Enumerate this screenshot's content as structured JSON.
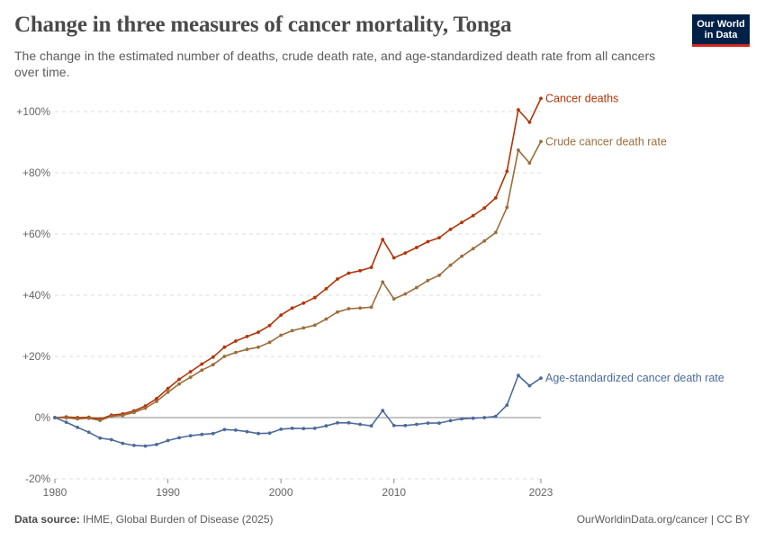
{
  "header": {
    "title": "Change in three measures of cancer mortality, Tonga",
    "subtitle": "The change in the estimated number of deaths, crude death rate, and age-standardized death rate from all cancers over time."
  },
  "logo": {
    "line1": "Our World",
    "line2": "in Data",
    "bg_color": "#002147",
    "accent_color": "#ce261e"
  },
  "footer": {
    "source_label": "Data source:",
    "source_text": "IHME, Global Burden of Disease (2025)",
    "credit": "OurWorldinData.org/cancer | CC BY"
  },
  "chart_data": {
    "type": "line",
    "x_ticks": [
      "1980",
      "1990",
      "2000",
      "2010",
      "2023"
    ],
    "y_ticks": [
      "-20%",
      "0%",
      "+20%",
      "+40%",
      "+60%",
      "+80%",
      "+100%"
    ],
    "xlim": [
      1980,
      2023
    ],
    "ylim": [
      -20,
      105
    ],
    "grid": "horizontal dashed",
    "legend": "labels at line ends (right)",
    "x": [
      1980,
      1981,
      1982,
      1983,
      1984,
      1985,
      1986,
      1987,
      1988,
      1989,
      1990,
      1991,
      1992,
      1993,
      1994,
      1995,
      1996,
      1997,
      1998,
      1999,
      2000,
      2001,
      2002,
      2003,
      2004,
      2005,
      2006,
      2007,
      2008,
      2009,
      2010,
      2011,
      2012,
      2013,
      2014,
      2015,
      2016,
      2017,
      2018,
      2019,
      2020,
      2021,
      2022,
      2023
    ],
    "series": [
      {
        "name": "Cancer deaths",
        "color": "#b13507",
        "values": [
          0,
          0.2,
          0,
          0.1,
          -0.5,
          0.8,
          1.2,
          2.2,
          3.8,
          6.2,
          9.5,
          12.5,
          15,
          17.5,
          19.8,
          23,
          25,
          26.5,
          27.9,
          30.1,
          33.5,
          35.8,
          37.4,
          39.2,
          42.1,
          45.3,
          47.2,
          48,
          49.1,
          58.2,
          52.2,
          53.8,
          55.6,
          57.5,
          58.8,
          61.5,
          63.8,
          66,
          68.5,
          71.8,
          80.5,
          100.6,
          96.5,
          104.3
        ]
      },
      {
        "name": "Crude cancer death rate",
        "color": "#9a6e3b",
        "values": [
          0,
          -0.1,
          -0.4,
          -0.2,
          -0.9,
          0.4,
          0.7,
          1.7,
          3.1,
          5.3,
          8.3,
          11,
          13.2,
          15.5,
          17.3,
          20,
          21.3,
          22.3,
          23,
          24.6,
          26.9,
          28.4,
          29.3,
          30.2,
          32.2,
          34.5,
          35.6,
          35.8,
          36.1,
          44.3,
          38.8,
          40.4,
          42.5,
          44.8,
          46.5,
          49.8,
          52.7,
          55.2,
          57.7,
          60.5,
          68.7,
          87.4,
          83.2,
          90.2
        ]
      },
      {
        "name": "Age-standardized cancer death rate",
        "color": "#4c6a9c",
        "values": [
          0,
          -1.5,
          -3.2,
          -4.8,
          -6.7,
          -7.2,
          -8.4,
          -9.1,
          -9.3,
          -8.8,
          -7.5,
          -6.6,
          -5.9,
          -5.5,
          -5.2,
          -3.9,
          -4.1,
          -4.6,
          -5.2,
          -5.1,
          -3.8,
          -3.5,
          -3.6,
          -3.5,
          -2.7,
          -1.7,
          -1.7,
          -2.2,
          -2.7,
          2.3,
          -2.6,
          -2.6,
          -2.2,
          -1.8,
          -1.8,
          -1,
          -0.4,
          -0.2,
          0,
          0.4,
          4.1,
          13.8,
          10.4,
          12.9
        ]
      }
    ]
  }
}
